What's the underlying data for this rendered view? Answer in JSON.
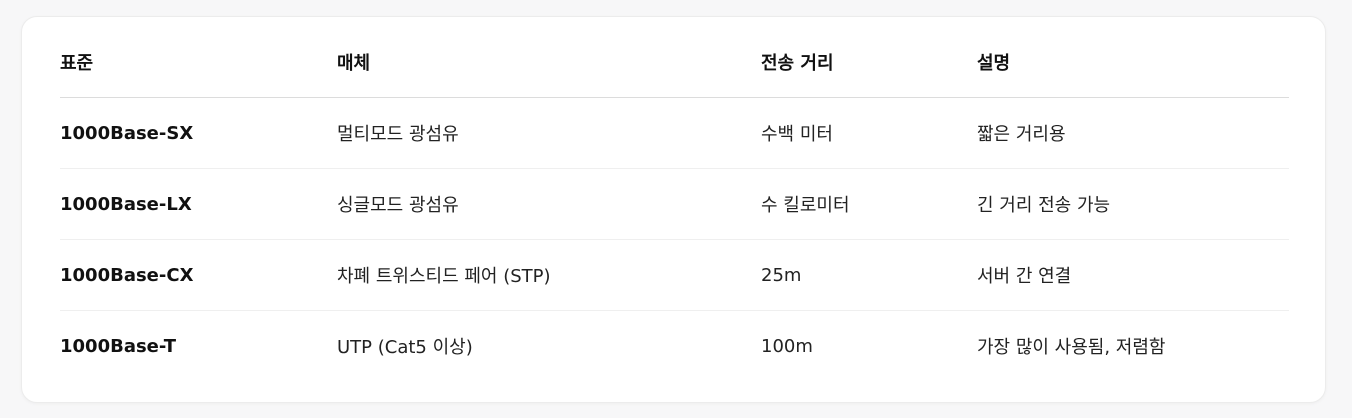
{
  "table": {
    "headers": [
      "표준",
      "매체",
      "전송 거리",
      "설명"
    ],
    "rows": [
      [
        "1000Base-SX",
        "멀티모드 광섬유",
        "수백 미터",
        "짧은 거리용"
      ],
      [
        "1000Base-LX",
        "싱글모드 광섬유",
        "수 킬로미터",
        "긴 거리 전송 가능"
      ],
      [
        "1000Base-CX",
        "차폐 트위스티드 페어 (STP)",
        "25m",
        "서버 간 연결"
      ],
      [
        "1000Base-T",
        "UTP (Cat5 이상)",
        "100m",
        "가장 많이 사용됨, 저렴함"
      ]
    ]
  }
}
